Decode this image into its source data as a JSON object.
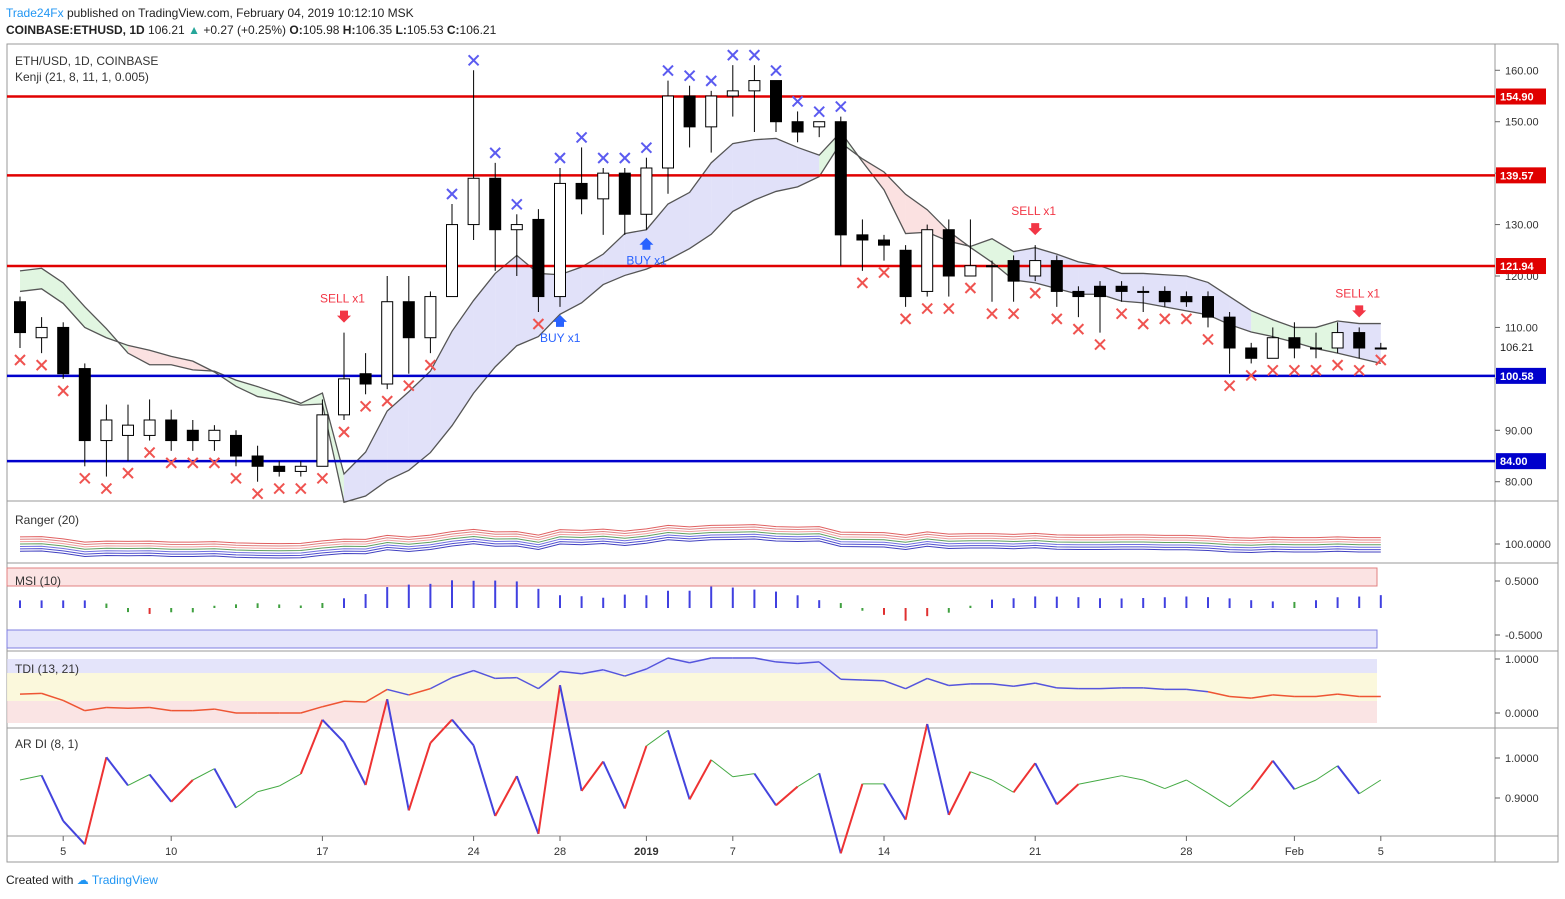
{
  "header": {
    "publisher": "Trade24Fx",
    "published_text": "published on TradingView.com, February 04, 2019 10:12:10 MSK",
    "symbol": "COINBASE:ETHUSD, 1D",
    "last": "106.21",
    "change": "+0.27 (+0.25%)",
    "ohlc": {
      "o_label": "O:",
      "o": "105.98",
      "h_label": "H:",
      "h": "106.35",
      "l_label": "L:",
      "l": "105.53",
      "c_label": "C:",
      "c": "106.21"
    }
  },
  "legend": {
    "title": "ETH/USD, 1D, COINBASE",
    "study": "Kenji (21, 8, 11, 1, 0.005)"
  },
  "panes": {
    "ranger": "Ranger (20)",
    "msi": "MSI (10)",
    "tdi": "TDI (13, 21)",
    "ardi": "AR DI (8, 1)"
  },
  "footer": {
    "created_with": "Created with",
    "brand": "TradingView"
  },
  "colors": {
    "up": "#ffffff",
    "down": "#000000",
    "red_level": "#e00000",
    "blue_level": "#0000cc",
    "sell": "#f23645",
    "buy": "#2962ff",
    "x_red": "#ef5350",
    "x_blue": "#5b5bf0"
  },
  "chart_data": {
    "type": "candlestick",
    "title": "ETH/USD, 1D, COINBASE",
    "x_ticks": [
      "5",
      "10",
      "17",
      "24",
      "28",
      "2019",
      "7",
      "14",
      "21",
      "28",
      "Feb",
      "5"
    ],
    "y_ticks": [
      160,
      150,
      140,
      130,
      120,
      110,
      100,
      90,
      80
    ],
    "y_range": [
      77,
      166
    ],
    "last_price": 106.21,
    "levels": [
      {
        "value": 154.9,
        "label": "154.90",
        "color": "red"
      },
      {
        "value": 139.57,
        "label": "139.57",
        "color": "red"
      },
      {
        "value": 121.94,
        "label": "121.94",
        "color": "red"
      },
      {
        "value": 100.58,
        "label": "100.58",
        "color": "blue"
      },
      {
        "value": 84.0,
        "label": "84.00",
        "color": "blue"
      }
    ],
    "candles": [
      [
        115,
        116,
        106,
        109
      ],
      [
        108,
        112,
        105,
        110
      ],
      [
        110,
        111,
        100,
        101
      ],
      [
        102,
        103,
        83,
        88
      ],
      [
        88,
        95,
        81,
        92
      ],
      [
        89,
        95,
        84,
        91
      ],
      [
        89,
        96,
        88,
        92
      ],
      [
        92,
        94,
        86,
        88
      ],
      [
        90,
        92,
        86,
        88
      ],
      [
        88,
        91,
        86,
        90
      ],
      [
        89,
        90,
        83,
        85
      ],
      [
        85,
        87,
        80,
        83
      ],
      [
        83,
        84,
        81,
        82
      ],
      [
        82,
        84,
        81,
        83
      ],
      [
        83,
        96,
        83,
        93
      ],
      [
        93,
        109,
        92,
        100
      ],
      [
        101,
        105,
        97,
        99
      ],
      [
        99,
        120,
        98,
        115
      ],
      [
        115,
        120,
        101,
        108
      ],
      [
        108,
        117,
        105,
        116
      ],
      [
        116,
        134,
        116,
        130
      ],
      [
        130,
        160,
        127,
        139
      ],
      [
        139,
        142,
        121,
        129
      ],
      [
        129,
        132,
        120,
        130
      ],
      [
        131,
        133,
        113,
        116
      ],
      [
        116,
        141,
        114,
        138
      ],
      [
        138,
        145,
        132,
        135
      ],
      [
        135,
        141,
        128,
        140
      ],
      [
        140,
        141,
        128,
        132
      ],
      [
        132,
        143,
        129,
        141
      ],
      [
        141,
        158,
        136,
        155
      ],
      [
        155,
        157,
        145,
        149
      ],
      [
        149,
        156,
        144,
        155
      ],
      [
        155,
        161,
        151,
        156
      ],
      [
        156,
        161,
        148,
        158
      ],
      [
        158,
        158,
        148,
        150
      ],
      [
        150,
        152,
        146,
        148
      ],
      [
        149,
        150,
        147,
        150
      ],
      [
        150,
        151,
        122,
        128
      ],
      [
        128,
        131,
        121,
        127
      ],
      [
        127,
        128,
        123,
        126
      ],
      [
        125,
        126,
        114,
        116
      ],
      [
        117,
        130,
        116,
        129
      ],
      [
        129,
        131,
        116,
        120
      ],
      [
        120,
        131,
        120,
        122
      ],
      [
        122,
        123,
        115,
        122
      ],
      [
        123,
        124,
        115,
        119
      ],
      [
        120,
        126,
        119,
        123
      ],
      [
        123,
        124,
        114,
        117
      ],
      [
        117,
        118,
        112,
        116
      ],
      [
        118,
        119,
        109,
        116
      ],
      [
        118,
        119,
        115,
        117
      ],
      [
        117,
        118,
        113,
        117
      ],
      [
        117,
        118,
        114,
        115
      ],
      [
        116,
        117,
        114,
        115
      ],
      [
        116,
        117,
        110,
        112
      ],
      [
        112,
        113,
        101,
        106
      ],
      [
        106,
        107,
        103,
        104
      ],
      [
        104,
        110,
        104,
        108
      ],
      [
        108,
        111,
        104,
        106
      ],
      [
        106,
        109,
        104,
        106
      ],
      [
        106,
        111,
        105,
        109
      ],
      [
        109,
        110,
        104,
        106
      ],
      [
        106,
        107,
        106,
        106
      ]
    ],
    "x_marks": [
      {
        "side": "below",
        "count": 64
      },
      {
        "side": "above",
        "count": 22
      }
    ],
    "signals": [
      {
        "label": "SELL x1",
        "type": "sell"
      },
      {
        "label": "BUY x1",
        "type": "buy"
      },
      {
        "label": "BUY x1",
        "type": "buy"
      },
      {
        "label": "SELL x1",
        "type": "sell"
      },
      {
        "label": "SELL x1",
        "type": "sell"
      }
    ],
    "ranger": {
      "y_tick": "100.0000"
    },
    "msi": {
      "y_ticks": [
        "0.5000",
        "-0.5000"
      ]
    },
    "tdi": {
      "y_ticks": [
        "1.0000",
        "0.0000"
      ]
    },
    "ardi": {
      "y_ticks": [
        "1.0000",
        "0.9000"
      ]
    }
  }
}
